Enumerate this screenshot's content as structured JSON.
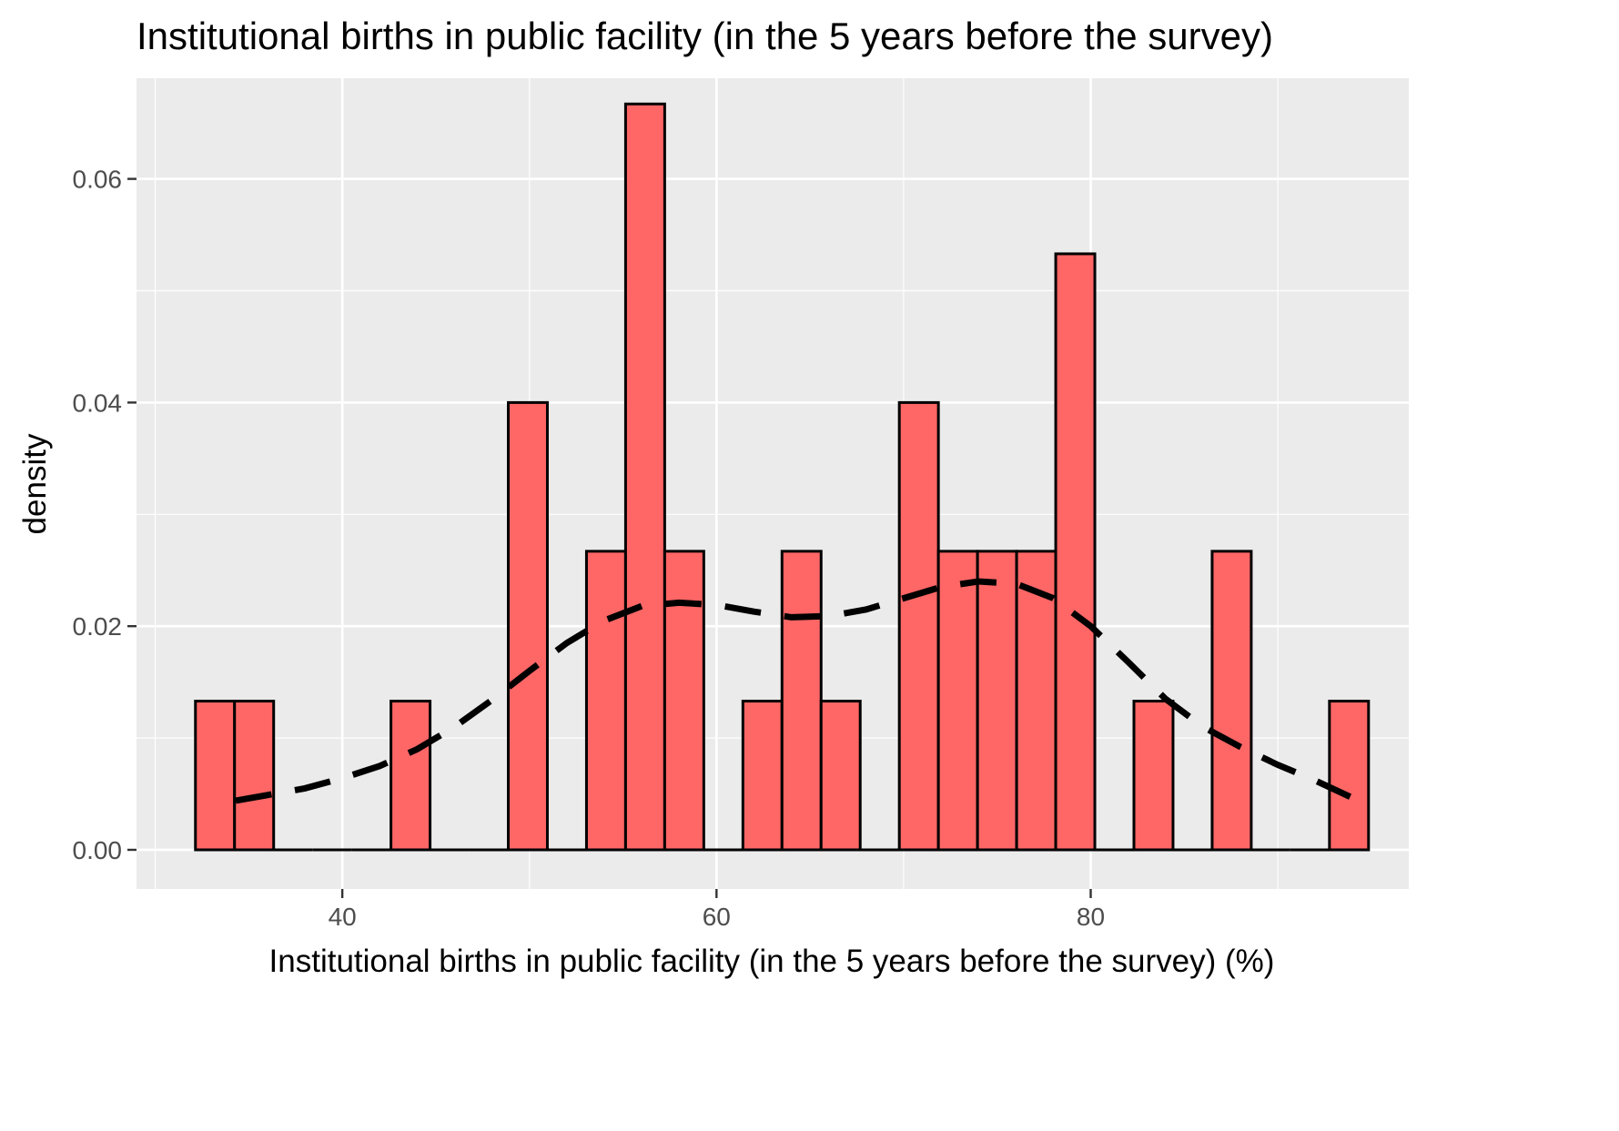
{
  "chart_data": {
    "type": "bar",
    "title": "Institutional births in public facility (in the 5 years before the survey)",
    "xlabel": "Institutional births in public facility (in the 5 years before the survey) (%)",
    "ylabel": "density",
    "xlim": [
      29,
      97
    ],
    "ylim": [
      -0.0035,
      0.069
    ],
    "x_ticks": [
      40,
      60,
      80
    ],
    "y_ticks": [
      0.0,
      0.02,
      0.04,
      0.06
    ],
    "y_tick_labels": [
      "0.00",
      "0.02",
      "0.04",
      "0.06"
    ],
    "grid": true,
    "bin_width": 2.09,
    "bins": [
      {
        "x0": 32.15,
        "x1": 34.24,
        "density": 0.0133
      },
      {
        "x0": 34.24,
        "x1": 36.33,
        "density": 0.0133
      },
      {
        "x0": 36.33,
        "x1": 38.42,
        "density": 0.0
      },
      {
        "x0": 38.42,
        "x1": 40.51,
        "density": 0.0
      },
      {
        "x0": 40.51,
        "x1": 42.6,
        "density": 0.0
      },
      {
        "x0": 42.6,
        "x1": 44.69,
        "density": 0.0133
      },
      {
        "x0": 44.69,
        "x1": 46.78,
        "density": 0.0
      },
      {
        "x0": 46.78,
        "x1": 48.87,
        "density": 0.0
      },
      {
        "x0": 48.87,
        "x1": 50.96,
        "density": 0.04
      },
      {
        "x0": 50.96,
        "x1": 53.05,
        "density": 0.0
      },
      {
        "x0": 53.05,
        "x1": 55.14,
        "density": 0.0267
      },
      {
        "x0": 55.14,
        "x1": 57.23,
        "density": 0.0667
      },
      {
        "x0": 57.23,
        "x1": 59.32,
        "density": 0.0267
      },
      {
        "x0": 59.32,
        "x1": 61.41,
        "density": 0.0
      },
      {
        "x0": 61.41,
        "x1": 63.5,
        "density": 0.0133
      },
      {
        "x0": 63.5,
        "x1": 65.59,
        "density": 0.0267
      },
      {
        "x0": 65.59,
        "x1": 67.68,
        "density": 0.0133
      },
      {
        "x0": 67.68,
        "x1": 69.77,
        "density": 0.0
      },
      {
        "x0": 69.77,
        "x1": 71.86,
        "density": 0.04
      },
      {
        "x0": 71.86,
        "x1": 73.95,
        "density": 0.0267
      },
      {
        "x0": 73.95,
        "x1": 76.04,
        "density": 0.0267
      },
      {
        "x0": 76.04,
        "x1": 78.13,
        "density": 0.0267
      },
      {
        "x0": 78.13,
        "x1": 80.22,
        "density": 0.0533
      },
      {
        "x0": 80.22,
        "x1": 82.31,
        "density": 0.0
      },
      {
        "x0": 82.31,
        "x1": 84.4,
        "density": 0.0133
      },
      {
        "x0": 84.4,
        "x1": 86.49,
        "density": 0.0
      },
      {
        "x0": 86.49,
        "x1": 88.58,
        "density": 0.0267
      },
      {
        "x0": 88.58,
        "x1": 90.67,
        "density": 0.0
      },
      {
        "x0": 90.67,
        "x1": 92.76,
        "density": 0.0
      },
      {
        "x0": 92.76,
        "x1": 94.85,
        "density": 0.0133
      }
    ],
    "density_curve": {
      "x": [
        34.3,
        36.0,
        38.0,
        40.0,
        42.0,
        44.0,
        46.0,
        48.0,
        50.0,
        52.0,
        54.0,
        56.0,
        58.0,
        60.0,
        62.0,
        64.0,
        66.0,
        68.0,
        70.0,
        72.0,
        74.0,
        76.0,
        78.0,
        80.0,
        82.0,
        84.0,
        86.0,
        88.0,
        90.0,
        92.0,
        94.3
      ],
      "y": [
        0.0044,
        0.0049,
        0.0055,
        0.0064,
        0.0075,
        0.009,
        0.011,
        0.0134,
        0.016,
        0.0185,
        0.0205,
        0.0218,
        0.0221,
        0.0219,
        0.0213,
        0.0208,
        0.0209,
        0.0215,
        0.0225,
        0.0235,
        0.024,
        0.0238,
        0.0225,
        0.02,
        0.0168,
        0.0135,
        0.011,
        0.0092,
        0.0076,
        0.0062,
        0.0044
      ],
      "style": "dashed"
    },
    "fill_color": "#ff6666",
    "outline_color": "#000000",
    "panel_color": "#ebebeb"
  }
}
